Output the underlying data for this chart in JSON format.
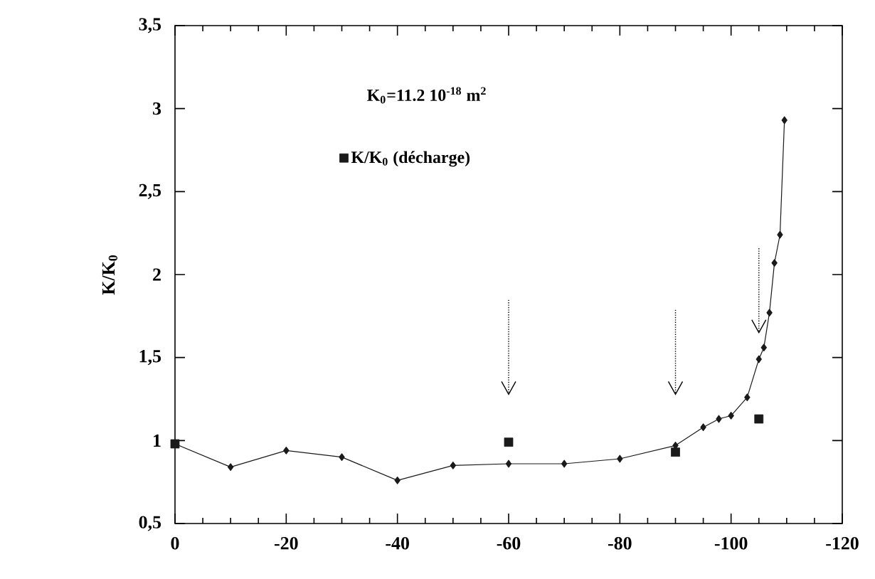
{
  "chart_data": {
    "type": "line",
    "ylabel": "K/K$_{0}$",
    "annotations": [
      "K$_{0}$=11.2 10$^{-18}$ m$^{2}$"
    ],
    "xlim": [
      0,
      -120
    ],
    "xticks": [
      0,
      -20,
      -40,
      -60,
      -80,
      -100,
      -120
    ],
    "ylim": [
      0.5,
      3.5
    ],
    "yticks": [
      {
        "value": 0.5,
        "label": "0,5"
      },
      1,
      {
        "value": 1.5,
        "label": "1,5"
      },
      2,
      {
        "value": 2.5,
        "label": "2,5"
      },
      3,
      {
        "value": 3.5,
        "label": "3,5"
      }
    ],
    "legend": "top left",
    "series": [
      {
        "type": "line",
        "marker": "diamond",
        "color": "#1a1a1a",
        "x": [
          0,
          -10,
          -20,
          -30,
          -40,
          -50,
          -60,
          -70,
          -80,
          -90,
          -95,
          -97.8,
          -100,
          -102.9,
          -105,
          -105.9,
          -106.9,
          -107.8,
          -108.8,
          -109.6
        ],
        "values": [
          0.98,
          0.84,
          0.94,
          0.9,
          0.76,
          0.85,
          0.86,
          0.86,
          0.89,
          0.97,
          1.08,
          1.13,
          1.15,
          1.26,
          1.49,
          1.56,
          1.77,
          2.07,
          2.24,
          2.93
        ]
      },
      {
        "type": "scatter",
        "marker": "square",
        "name": "K/K$_{0}$ (décharge)",
        "color": "#1a1a1a",
        "x": [
          0,
          -60,
          -90,
          -105
        ],
        "values": [
          0.98,
          0.99,
          0.93,
          1.13
        ]
      }
    ]
  }
}
